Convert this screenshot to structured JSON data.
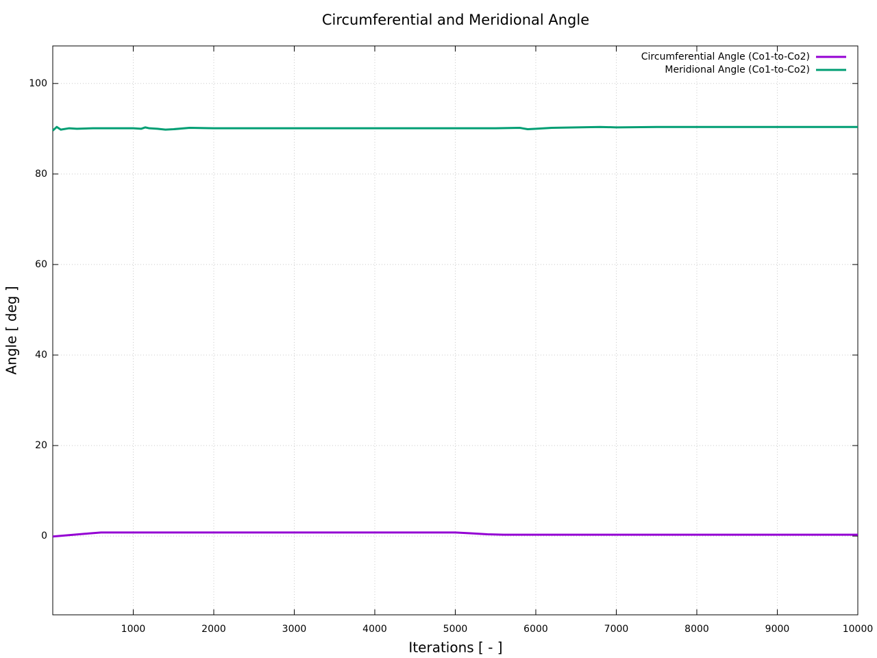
{
  "chart_data": {
    "type": "line",
    "title": "Circumferential and Meridional Angle",
    "x_label": "Iterations [ - ]",
    "y_label": "Angle [ deg ]",
    "xlim": [
      0,
      10000
    ],
    "ylim": [
      -17.4,
      108.3
    ],
    "xticks": [
      1000,
      2000,
      3000,
      4000,
      5000,
      6000,
      7000,
      8000,
      9000,
      10000
    ],
    "yticks": [
      0,
      20,
      40,
      60,
      80,
      100
    ],
    "grid": true,
    "legend": "top-right",
    "series": [
      {
        "name": "Circumferential Angle (Co1-to-Co2)",
        "color": "#9400d3",
        "x": [
          0,
          200,
          400,
          600,
          1000,
          2000,
          3000,
          4000,
          5000,
          5200,
          5400,
          5600,
          6000,
          7000,
          8000,
          9000,
          10000
        ],
        "values": [
          -0.1,
          0.2,
          0.5,
          0.8,
          0.8,
          0.8,
          0.8,
          0.8,
          0.8,
          0.6,
          0.4,
          0.3,
          0.3,
          0.3,
          0.3,
          0.3,
          0.3
        ]
      },
      {
        "name": "Meridional Angle (Co1-to-Co2)",
        "color": "#009e73",
        "x": [
          0,
          50,
          100,
          200,
          300,
          500,
          800,
          1000,
          1100,
          1150,
          1200,
          1300,
          1400,
          1500,
          1700,
          2000,
          2500,
          3000,
          3500,
          4000,
          4500,
          5000,
          5500,
          5800,
          5900,
          6000,
          6200,
          6500,
          6800,
          7000,
          7500,
          8000,
          9000,
          10000
        ],
        "values": [
          89.6,
          90.4,
          89.8,
          90.1,
          90.0,
          90.1,
          90.1,
          90.1,
          90.0,
          90.3,
          90.1,
          90.0,
          89.8,
          89.9,
          90.2,
          90.1,
          90.1,
          90.1,
          90.1,
          90.1,
          90.1,
          90.1,
          90.1,
          90.2,
          89.9,
          90.0,
          90.2,
          90.3,
          90.4,
          90.3,
          90.4,
          90.4,
          90.4,
          90.4
        ]
      }
    ]
  }
}
